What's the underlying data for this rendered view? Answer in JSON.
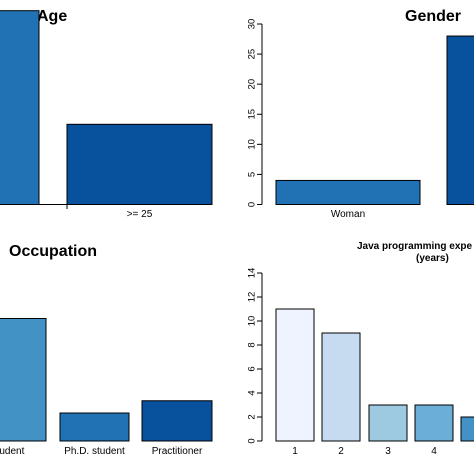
{
  "chart_data": [
    {
      "type": "bar",
      "title": "Age",
      "categories": [
        "",
        ">= 25"
      ],
      "values": [
        29,
        12
      ],
      "colors": [
        "#2171b5",
        "#08519c"
      ],
      "ylim": [
        0,
        30
      ]
    },
    {
      "type": "bar",
      "title": "Gender",
      "categories": [
        "Woman",
        ""
      ],
      "values": [
        4,
        28
      ],
      "colors": [
        "#2171b5",
        "#08519c"
      ],
      "ylim": [
        0,
        30
      ],
      "yticks": [
        0,
        5,
        10,
        15,
        20,
        25,
        30
      ]
    },
    {
      "type": "bar",
      "title": "Occupation",
      "categories": [
        "student",
        "Ph.D. student",
        "Practitioner"
      ],
      "values": [
        7,
        1.6,
        2.3
      ],
      "colors": [
        "#4292c6",
        "#2171b5",
        "#08519c"
      ],
      "ylim": [
        0,
        12
      ]
    },
    {
      "type": "bar",
      "title": "Java programming expe\n(years)",
      "title_lines": [
        "Java programming expe",
        "(years)"
      ],
      "categories": [
        "1",
        "2",
        "3",
        "4",
        ""
      ],
      "values": [
        11,
        9,
        3,
        3,
        2
      ],
      "colors": [
        "#eff3ff",
        "#c6dbef",
        "#9ecae1",
        "#6baed6",
        "#4292c6"
      ],
      "ylim": [
        0,
        14
      ],
      "yticks": [
        0,
        2,
        4,
        6,
        8,
        10,
        12,
        14
      ]
    }
  ]
}
